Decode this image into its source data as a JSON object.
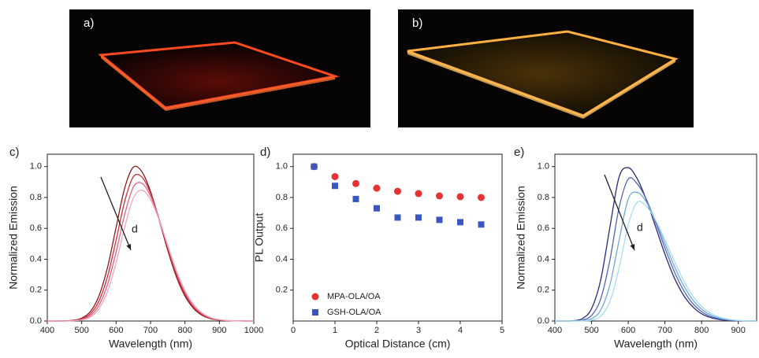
{
  "photos": [
    {
      "label": "a)"
    },
    {
      "label": "b)"
    }
  ],
  "chart_data": [
    {
      "type": "line",
      "label": "c)",
      "annotation": "d",
      "xlabel": "Wavelength (nm)",
      "ylabel": "Normalized Emission",
      "xlim": [
        400,
        1000
      ],
      "xticks": [
        400,
        500,
        600,
        700,
        800,
        900,
        1000
      ],
      "ylim": [
        0,
        1.08
      ],
      "yticks": [
        {
          "value": 0,
          "label": "0.0"
        },
        0.2,
        0.4,
        0.6,
        0.8,
        {
          "value": 1,
          "label": "1.0"
        }
      ],
      "x": [
        400,
        425,
        450,
        475,
        500,
        525,
        550,
        575,
        600,
        625,
        650,
        675,
        700,
        725,
        750,
        775,
        800,
        825,
        850,
        875,
        900,
        925,
        950,
        975,
        1000
      ],
      "series": [
        {
          "color": "#8b1a1a",
          "values": [
            0,
            0,
            0.001,
            0.005,
            0.019,
            0.061,
            0.162,
            0.347,
            0.607,
            0.862,
            0.996,
            0.966,
            0.839,
            0.654,
            0.458,
            0.287,
            0.162,
            0.082,
            0.037,
            0.015,
            0.006,
            0.002,
            0.001,
            0,
            0
          ]
        },
        {
          "color": "#c8303a",
          "values": [
            0,
            0,
            0.001,
            0.003,
            0.014,
            0.047,
            0.129,
            0.288,
            0.524,
            0.776,
            0.934,
            0.932,
            0.827,
            0.659,
            0.471,
            0.302,
            0.174,
            0.09,
            0.042,
            0.017,
            0.006,
            0.002,
            0.001,
            0,
            0
          ]
        },
        {
          "color": "#e2607e",
          "values": [
            0,
            0,
            0,
            0.002,
            0.01,
            0.035,
            0.101,
            0.236,
            0.448,
            0.691,
            0.867,
            0.892,
            0.809,
            0.659,
            0.482,
            0.316,
            0.186,
            0.098,
            0.047,
            0.02,
            0.008,
            0.003,
            0.001,
            0,
            0
          ]
        },
        {
          "color": "#f2a6bf",
          "values": [
            0,
            0,
            0,
            0.002,
            0.007,
            0.026,
            0.079,
            0.191,
            0.378,
            0.608,
            0.796,
            0.848,
            0.786,
            0.654,
            0.489,
            0.327,
            0.197,
            0.106,
            0.052,
            0.022,
            0.009,
            0.003,
            0.001,
            0,
            0
          ]
        }
      ]
    },
    {
      "type": "scatter",
      "label": "d)",
      "xlabel": "Optical Distance (cm)",
      "ylabel": "PL Output",
      "xlim": [
        0,
        5
      ],
      "xticks": [
        0,
        1,
        2,
        3,
        4,
        5
      ],
      "ylim": [
        0,
        1.08
      ],
      "yticks": [
        0.2,
        0.4,
        0.6,
        0.8,
        {
          "value": 1,
          "label": "1.0"
        }
      ],
      "legend": "lower left",
      "x": [
        0.5,
        1,
        1.5,
        2,
        2.5,
        3,
        3.5,
        4,
        4.5
      ],
      "series": [
        {
          "name": "MPA-OLA/OA",
          "color": "#e53232",
          "marker": "circle",
          "values": [
            1.0,
            0.935,
            0.89,
            0.86,
            0.84,
            0.825,
            0.81,
            0.805,
            0.8
          ]
        },
        {
          "name": "GSH-OLA/OA",
          "color": "#3a56c0",
          "marker": "square",
          "values": [
            1.0,
            0.875,
            0.79,
            0.73,
            0.67,
            0.67,
            0.655,
            0.64,
            0.625
          ]
        }
      ]
    },
    {
      "type": "line",
      "label": "e)",
      "annotation": "d",
      "xlabel": "Wavelength (nm)",
      "ylabel": "Normalized Emission",
      "xlim": [
        400,
        950
      ],
      "xticks": [
        400,
        500,
        600,
        700,
        800,
        900
      ],
      "ylim": [
        0,
        1.08
      ],
      "yticks": [
        {
          "value": 0,
          "label": "0.0"
        },
        0.2,
        0.4,
        0.6,
        0.8,
        {
          "value": 1,
          "label": "1.0"
        }
      ],
      "x": [
        400,
        425,
        450,
        475,
        500,
        525,
        550,
        575,
        600,
        625,
        650,
        675,
        700,
        725,
        750,
        775,
        800,
        825,
        850,
        875,
        900,
        925,
        950
      ],
      "series": [
        {
          "color": "#2a2a78",
          "values": [
            0,
            0,
            0.002,
            0.016,
            0.08,
            0.267,
            0.607,
            0.932,
            0.993,
            0.919,
            0.78,
            0.607,
            0.433,
            0.283,
            0.17,
            0.094,
            0.047,
            0.022,
            0.009,
            0.004,
            0.001,
            0,
            0
          ]
        },
        {
          "color": "#5464b4",
          "values": [
            0,
            0,
            0.001,
            0.006,
            0.036,
            0.144,
            0.395,
            0.733,
            0.919,
            0.887,
            0.784,
            0.636,
            0.473,
            0.323,
            0.202,
            0.116,
            0.061,
            0.029,
            0.013,
            0.005,
            0.002,
            0.001,
            0
          ]
        },
        {
          "color": "#6fa9da",
          "values": [
            0,
            0,
            0,
            0.002,
            0.015,
            0.071,
            0.234,
            0.522,
            0.79,
            0.833,
            0.768,
            0.649,
            0.503,
            0.358,
            0.234,
            0.14,
            0.077,
            0.039,
            0.018,
            0.008,
            0.003,
            0.001,
            0
          ]
        },
        {
          "color": "#a6dcf2",
          "values": [
            0,
            0,
            0,
            0.001,
            0.005,
            0.032,
            0.127,
            0.342,
            0.623,
            0.77,
            0.74,
            0.652,
            0.527,
            0.391,
            0.266,
            0.166,
            0.095,
            0.05,
            0.024,
            0.011,
            0.004,
            0.001,
            0
          ]
        }
      ]
    }
  ]
}
